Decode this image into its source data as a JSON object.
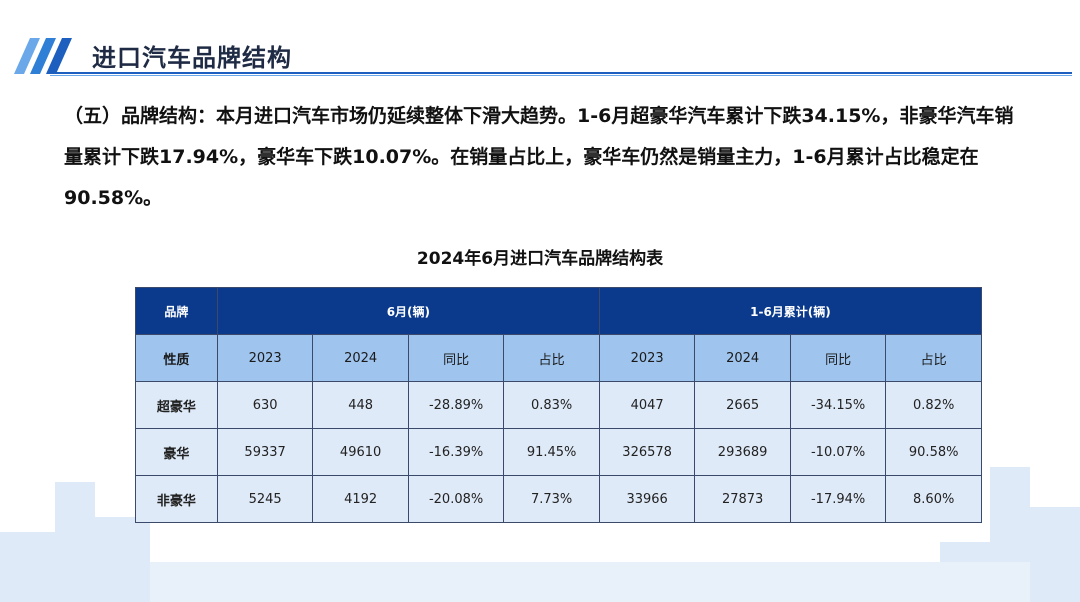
{
  "header": {
    "title": "进口汽车品牌结构"
  },
  "summary": {
    "text": "（五）品牌结构：本月进口汽车市场仍延续整体下滑大趋势。1-6月超豪华汽车累计下跌34.15%，非豪华汽车销量累计下跌17.94%，豪华车下跌10.07%。在销量占比上，豪华车仍然是销量主力，1-6月累计占比稳定在90.58%。"
  },
  "table": {
    "title": "2024年6月进口汽车品牌结构表",
    "header_top": [
      "品牌",
      "6月(辆)",
      "1-6月累计(辆)"
    ],
    "header_sub": [
      "性质",
      "2023",
      "2024",
      "同比",
      "占比",
      "2023",
      "2024",
      "同比",
      "占比"
    ],
    "rows": [
      [
        "超豪华",
        "630",
        "448",
        "-28.89%",
        "0.83%",
        "4047",
        "2665",
        "-34.15%",
        "0.82%"
      ],
      [
        "豪华",
        "59337",
        "49610",
        "-16.39%",
        "91.45%",
        "326578",
        "293689",
        "-10.07%",
        "90.58%"
      ],
      [
        "非豪华",
        "5245",
        "4192",
        "-20.08%",
        "7.73%",
        "33966",
        "27873",
        "-17.94%",
        "8.60%"
      ]
    ]
  },
  "colors": {
    "accent": "#1d5fbf",
    "header_dark": "#0b3a8c",
    "header_light": "#9fc5ee",
    "row_bg": "#dfeaf8"
  }
}
